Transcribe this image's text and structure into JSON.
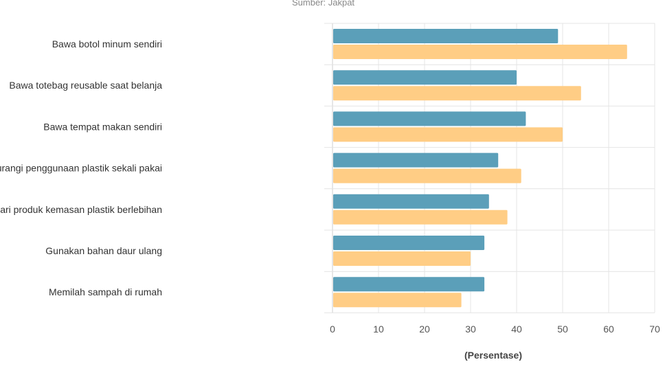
{
  "chart_data": {
    "type": "bar",
    "orientation": "horizontal",
    "source": "Sumber: Jakpat",
    "xlabel": "(Persentase)",
    "xlim": [
      0,
      70
    ],
    "xticks": [
      0,
      10,
      20,
      30,
      40,
      50,
      60,
      70
    ],
    "grid": true,
    "categories": [
      "Bawa botol minum sendiri",
      "Bawa totebag reusable saat belanja",
      "Bawa tempat makan sendiri",
      "Kurangi penggunaan plastik sekali pakai",
      "Hindari produk kemasan plastik berlebihan",
      "Gunakan bahan daur ulang",
      "Memilah sampah di rumah"
    ],
    "series": [
      {
        "color": "#5b9fb9",
        "values": [
          49,
          40,
          42,
          36,
          34,
          33,
          33
        ]
      },
      {
        "color": "#ffcd85",
        "values": [
          64,
          54,
          50,
          41,
          38,
          30,
          28
        ]
      }
    ]
  }
}
